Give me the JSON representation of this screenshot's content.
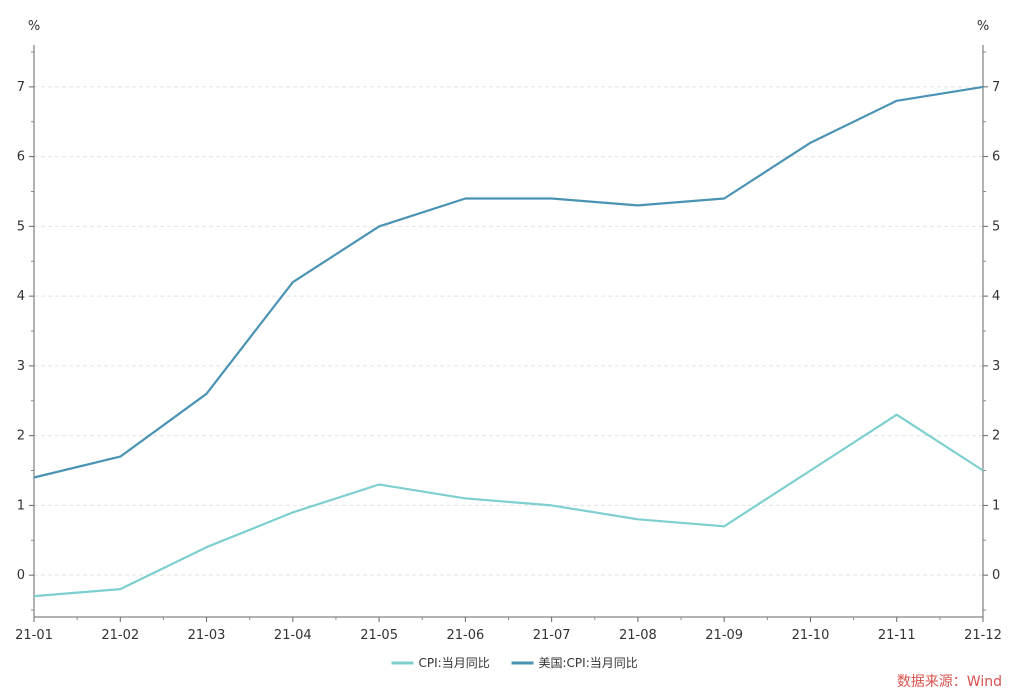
{
  "chart_data": {
    "type": "line",
    "categories": [
      "21-01",
      "21-02",
      "21-03",
      "21-04",
      "21-05",
      "21-06",
      "21-07",
      "21-08",
      "21-09",
      "21-10",
      "21-11",
      "21-12"
    ],
    "series": [
      {
        "name": "CPI:当月同比",
        "color": "#7ecfd0",
        "values": [
          -0.3,
          -0.2,
          0.4,
          0.9,
          1.3,
          1.1,
          1.0,
          0.8,
          0.7,
          1.5,
          2.3,
          1.5
        ]
      },
      {
        "name": "美国:CPI:当月同比",
        "color": "#4a93b3",
        "values": [
          1.4,
          1.7,
          2.6,
          4.2,
          5.0,
          5.4,
          5.4,
          5.3,
          5.4,
          6.2,
          6.8,
          7.0
        ]
      }
    ],
    "ylim": [
      -0.6,
      7.6
    ],
    "yticks": [
      0,
      1,
      2,
      3,
      4,
      5,
      6,
      7
    ],
    "y_unit_left": "%",
    "y_unit_right": "%",
    "grid": true,
    "legend_position": "bottom-center"
  },
  "source_note": "数据来源：Wind"
}
